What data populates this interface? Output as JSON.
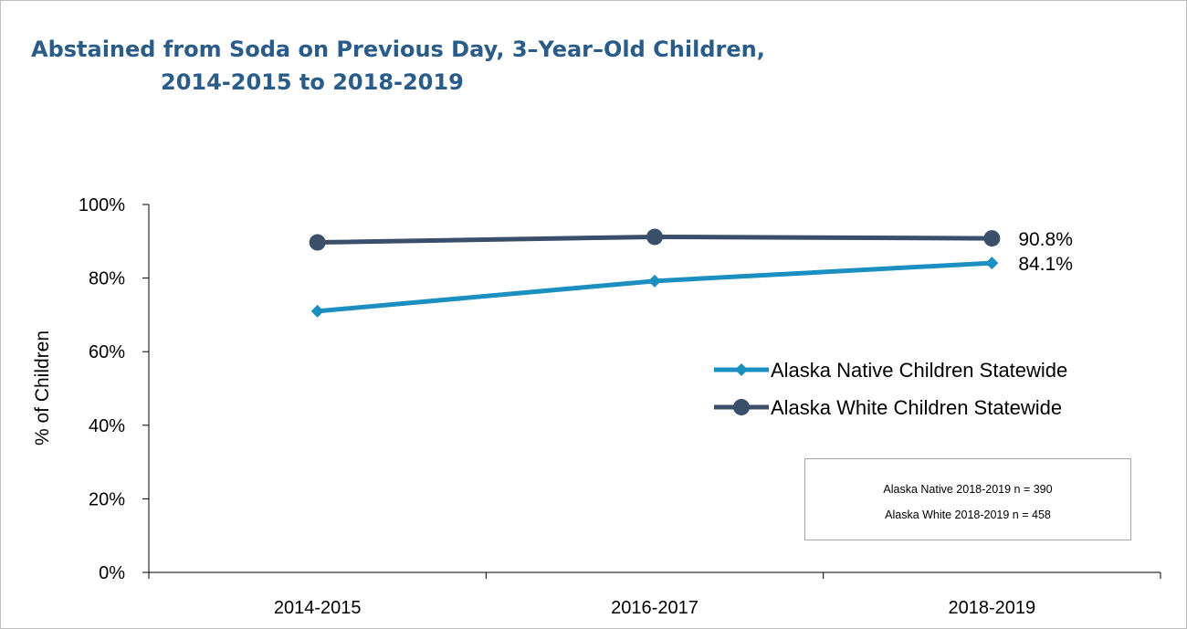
{
  "chart_data": {
    "type": "line",
    "title_line1": "Abstained from Soda on Previous Day, 3–Year–Old Children,",
    "title_line2": "2014-2015 to 2018-2019",
    "ylabel": "% of Children",
    "xlabel": "",
    "ylim": [
      0,
      100
    ],
    "yticks": [
      0,
      20,
      40,
      60,
      80,
      100
    ],
    "ytick_labels": [
      "0%",
      "20%",
      "40%",
      "60%",
      "80%",
      "100%"
    ],
    "categories": [
      "2014-2015",
      "2016-2017",
      "2018-2019"
    ],
    "series": [
      {
        "name": "Alaska Native Children Statewide",
        "values": [
          71.0,
          79.2,
          84.1
        ],
        "color": "#1b8fc0",
        "marker": "diamond",
        "end_label": "84.1%"
      },
      {
        "name": "Alaska White Children Statewide",
        "values": [
          89.7,
          91.2,
          90.8
        ],
        "color": "#3b4f6b",
        "marker": "circle",
        "end_label": "90.8%"
      }
    ],
    "legend_position": "right",
    "grid": false
  },
  "note": {
    "line1": "Alaska Native 2018-2019 n = 390",
    "line2": "Alaska White 2018-2019 n = 458"
  }
}
